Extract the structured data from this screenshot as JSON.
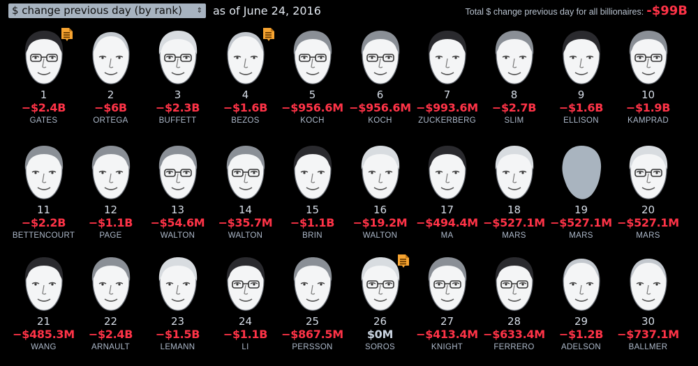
{
  "header": {
    "select_label": "$ change previous day (by rank)",
    "select_arrows": "⇕",
    "as_of": "as of June 24, 2016",
    "total_label": "Total $ change previous day for all billionaires:",
    "total_value": "-$99B"
  },
  "colors": {
    "background": "#000000",
    "negative": "#ff3347",
    "neutral": "#c9d3e0",
    "note_icon": "#f7a431",
    "select_bg": "#a7b3c0"
  },
  "people": [
    {
      "rank": "1",
      "change": "−$2.4B",
      "name": "GATES",
      "negative": true,
      "note": true,
      "hair": "dark",
      "glasses": true
    },
    {
      "rank": "2",
      "change": "−$6B",
      "name": "ORTEGA",
      "negative": true,
      "note": false,
      "hair": "bald",
      "glasses": false
    },
    {
      "rank": "3",
      "change": "−$2.3B",
      "name": "BUFFETT",
      "negative": true,
      "note": false,
      "hair": "white",
      "glasses": true
    },
    {
      "rank": "4",
      "change": "−$1.6B",
      "name": "BEZOS",
      "negative": true,
      "note": true,
      "hair": "bald",
      "glasses": false
    },
    {
      "rank": "5",
      "change": "−$956.6M",
      "name": "KOCH",
      "negative": true,
      "note": false,
      "hair": "gray",
      "glasses": true
    },
    {
      "rank": "6",
      "change": "−$956.6M",
      "name": "KOCH",
      "negative": true,
      "note": false,
      "hair": "gray",
      "glasses": true
    },
    {
      "rank": "7",
      "change": "−$993.6M",
      "name": "ZUCKERBERG",
      "negative": true,
      "note": false,
      "hair": "dark",
      "glasses": false
    },
    {
      "rank": "8",
      "change": "−$2.7B",
      "name": "SLIM",
      "negative": true,
      "note": false,
      "hair": "gray",
      "glasses": false
    },
    {
      "rank": "9",
      "change": "−$1.6B",
      "name": "ELLISON",
      "negative": true,
      "note": false,
      "hair": "dark",
      "glasses": false
    },
    {
      "rank": "10",
      "change": "−$1.9B",
      "name": "KAMPRAD",
      "negative": true,
      "note": false,
      "hair": "gray",
      "glasses": true
    },
    {
      "rank": "11",
      "change": "−$2.2B",
      "name": "BETTENCOURT",
      "negative": true,
      "note": false,
      "hair": "gray",
      "glasses": false
    },
    {
      "rank": "12",
      "change": "−$1.1B",
      "name": "PAGE",
      "negative": true,
      "note": false,
      "hair": "gray",
      "glasses": false
    },
    {
      "rank": "13",
      "change": "−$54.6M",
      "name": "WALTON",
      "negative": true,
      "note": false,
      "hair": "gray",
      "glasses": true
    },
    {
      "rank": "14",
      "change": "−$35.7M",
      "name": "WALTON",
      "negative": true,
      "note": false,
      "hair": "gray",
      "glasses": true
    },
    {
      "rank": "15",
      "change": "−$1.1B",
      "name": "BRIN",
      "negative": true,
      "note": false,
      "hair": "dark",
      "glasses": false
    },
    {
      "rank": "16",
      "change": "−$19.2M",
      "name": "WALTON",
      "negative": true,
      "note": false,
      "hair": "white",
      "glasses": false
    },
    {
      "rank": "17",
      "change": "−$494.4M",
      "name": "MA",
      "negative": true,
      "note": false,
      "hair": "dark",
      "glasses": false
    },
    {
      "rank": "18",
      "change": "−$527.1M",
      "name": "MARS",
      "negative": true,
      "note": false,
      "hair": "white",
      "glasses": false
    },
    {
      "rank": "19",
      "change": "−$527.1M",
      "name": "MARS",
      "negative": true,
      "note": false,
      "hair": "silhouette",
      "glasses": false
    },
    {
      "rank": "20",
      "change": "−$527.1M",
      "name": "MARS",
      "negative": true,
      "note": false,
      "hair": "white",
      "glasses": true
    },
    {
      "rank": "21",
      "change": "−$485.3M",
      "name": "WANG",
      "negative": true,
      "note": false,
      "hair": "dark",
      "glasses": false
    },
    {
      "rank": "22",
      "change": "−$2.4B",
      "name": "ARNAULT",
      "negative": true,
      "note": false,
      "hair": "gray",
      "glasses": false
    },
    {
      "rank": "23",
      "change": "−$1.5B",
      "name": "LEMANN",
      "negative": true,
      "note": false,
      "hair": "white",
      "glasses": false
    },
    {
      "rank": "24",
      "change": "−$1.1B",
      "name": "LI",
      "negative": true,
      "note": false,
      "hair": "dark",
      "glasses": true
    },
    {
      "rank": "25",
      "change": "−$867.5M",
      "name": "PERSSON",
      "negative": true,
      "note": false,
      "hair": "gray",
      "glasses": false
    },
    {
      "rank": "26",
      "change": "$0M",
      "name": "SOROS",
      "negative": false,
      "note": true,
      "hair": "white",
      "glasses": true
    },
    {
      "rank": "27",
      "change": "−$413.4M",
      "name": "KNIGHT",
      "negative": true,
      "note": false,
      "hair": "gray",
      "glasses": true
    },
    {
      "rank": "28",
      "change": "−$633.4M",
      "name": "FERRERO",
      "negative": true,
      "note": false,
      "hair": "dark",
      "glasses": true
    },
    {
      "rank": "29",
      "change": "−$1.2B",
      "name": "ADELSON",
      "negative": true,
      "note": false,
      "hair": "bald",
      "glasses": false
    },
    {
      "rank": "30",
      "change": "−$737.1M",
      "name": "BALLMER",
      "negative": true,
      "note": false,
      "hair": "bald",
      "glasses": false
    }
  ]
}
